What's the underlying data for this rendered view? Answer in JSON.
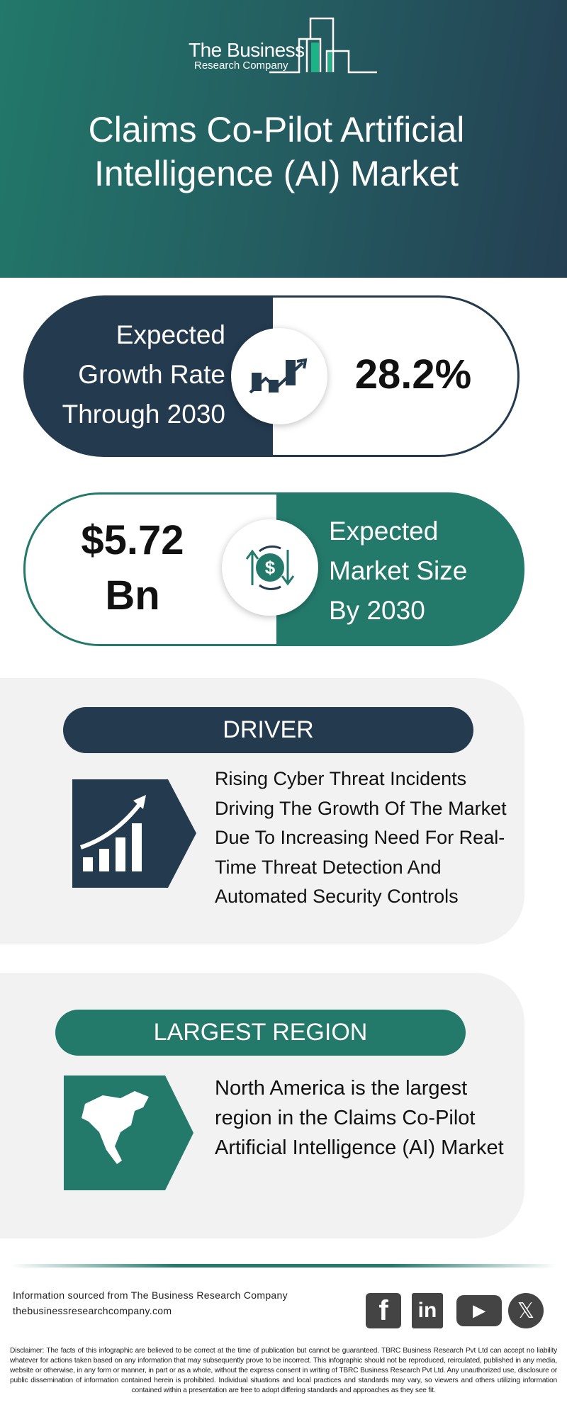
{
  "header": {
    "logo_line1": "The Business",
    "logo_line2": "Research Company",
    "title": "Claims Co-Pilot Artificial Intelligence (AI) Market"
  },
  "growth": {
    "label": "Expected Growth Rate Through 2030",
    "value": "28.2%",
    "icon": "growth-chart-icon"
  },
  "market_size": {
    "value": "$5.72 Bn",
    "label": "Expected Market Size By 2030",
    "icon": "dollar-exchange-icon"
  },
  "driver": {
    "heading": "DRIVER",
    "text": "Rising Cyber Threat Incidents Driving The Growth Of The Market Due To Increasing Need For Real-Time Threat Detection And Automated Security Controls",
    "icon": "rising-bar-chart-icon"
  },
  "region": {
    "heading": "LARGEST REGION",
    "text": "North America is the largest region in the Claims Co-Pilot Artificial Intelligence (AI) Market",
    "icon": "north-america-map-icon"
  },
  "footer": {
    "source": "Information sourced from The Business Research Company",
    "website": "thebusinessresearchcompany.com",
    "social": [
      "facebook",
      "linkedin",
      "youtube",
      "x"
    ]
  },
  "disclaimer": "Disclaimer: The facts of this infographic are believed to be correct at the time of publication but cannot be guaranteed. TBRC Business Research Pvt Ltd can accept no liability whatever for actions taken based on any information that may subsequently prove to be incorrect. This infographic should not be reproduced, reirculated, published in any media, website or otherwise, in any form or manner, in part or as a whole, without the express consent in writing of TBRC Business Research Pvt Ltd. Any unauthorized use, disclosure or public dissemination of information contained herein is prohibited. Individual situations and local practices and standards may vary, so viewers and others utilizing information contained within a presentation are free to adopt differing standards and approaches as they see fit.",
  "colors": {
    "dark": "#243a4f",
    "teal": "#237a6b",
    "panel": "#f2f2f2"
  }
}
